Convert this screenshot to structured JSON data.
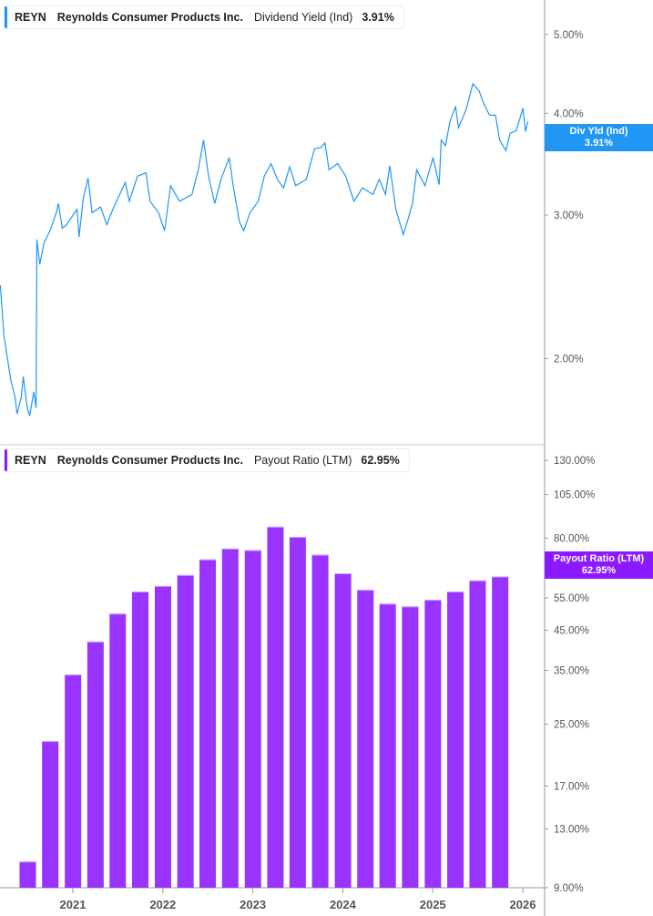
{
  "chart_data": [
    {
      "type": "line",
      "legend": {
        "ticker": "REYN",
        "company": "Reynolds Consumer Products Inc.",
        "metric": "Dividend Yield (Ind)",
        "value": "3.91%"
      },
      "current_label": {
        "line1": "Div Yld (Ind)",
        "line2": "3.91%"
      },
      "color": "#2196f3",
      "y_scale": "log",
      "ylim": [
        1.6,
        5.4
      ],
      "y_ticks": [
        {
          "value": 5,
          "label": "5.00%"
        },
        {
          "value": 4,
          "label": "4.00%"
        },
        {
          "value": 3,
          "label": "3.00%"
        },
        {
          "value": 2,
          "label": "2.00%"
        }
      ],
      "series": [
        {
          "x": [
            "2020-03-10",
            "2020-03-24",
            "2020-04-05",
            "2020-04-22",
            "2020-05-09",
            "2020-05-17",
            "2020-06-03",
            "2020-06-12",
            "2020-06-28",
            "2020-07-07",
            "2020-07-24",
            "2020-08-03",
            "2020-08-06",
            "2020-08-18",
            "2020-09-04",
            "2020-09-29",
            "2020-10-24",
            "2020-11-02",
            "2020-11-18",
            "2020-12-05",
            "2021-01-17",
            "2021-01-25",
            "2021-02-12",
            "2021-03-01",
            "2021-03-17",
            "2021-04-21",
            "2021-05-16",
            "2021-06-10",
            "2021-07-30",
            "2021-08-16",
            "2021-09-19",
            "2021-10-23",
            "2021-11-09",
            "2021-12-13",
            "2022-01-07",
            "2022-02-01",
            "2022-03-07",
            "2022-04-27",
            "2022-05-22",
            "2022-06-13",
            "2022-07-03",
            "2022-07-28",
            "2022-08-23",
            "2022-09-26",
            "2022-10-13",
            "2022-11-07",
            "2022-11-24",
            "2022-12-19",
            "2023-01-22",
            "2023-02-16",
            "2023-03-13",
            "2023-04-08",
            "2023-05-03",
            "2023-05-28",
            "2023-06-22",
            "2023-08-04",
            "2023-09-07",
            "2023-10-02",
            "2023-10-19",
            "2023-11-05",
            "2023-12-09",
            "2024-01-12",
            "2024-02-15",
            "2024-03-19",
            "2024-05-01",
            "2024-05-26",
            "2024-06-21",
            "2024-07-08",
            "2024-08-02",
            "2024-09-02",
            "2024-09-22",
            "2024-10-09",
            "2024-10-26",
            "2024-11-29",
            "2025-01-01",
            "2025-01-26",
            "2025-02-04",
            "2025-02-21",
            "2025-03-09",
            "2025-04-01",
            "2025-04-13",
            "2025-05-13",
            "2025-06-11",
            "2025-07-06",
            "2025-07-23",
            "2025-08-17",
            "2025-09-11",
            "2025-09-28",
            "2025-10-23",
            "2025-11-09",
            "2025-12-04",
            "2025-12-31",
            "2026-01-11",
            "2026-01-21"
          ],
          "y": [
            2.46,
            2.14,
            2.03,
            1.88,
            1.79,
            1.71,
            1.79,
            1.9,
            1.74,
            1.7,
            1.82,
            1.74,
            2.8,
            2.61,
            2.77,
            2.87,
            3.02,
            3.1,
            2.89,
            2.92,
            3.05,
            2.82,
            3.15,
            3.33,
            3.02,
            3.07,
            2.92,
            3.05,
            3.29,
            3.12,
            3.35,
            3.38,
            3.12,
            3.02,
            2.87,
            3.26,
            3.12,
            3.18,
            3.41,
            3.71,
            3.35,
            3.1,
            3.32,
            3.53,
            3.24,
            2.94,
            2.87,
            3.02,
            3.12,
            3.35,
            3.47,
            3.32,
            3.24,
            3.44,
            3.26,
            3.32,
            3.62,
            3.63,
            3.68,
            3.41,
            3.47,
            3.35,
            3.12,
            3.24,
            3.18,
            3.32,
            3.18,
            3.45,
            3.05,
            2.84,
            2.97,
            3.1,
            3.41,
            3.26,
            3.53,
            3.27,
            3.71,
            3.65,
            3.91,
            4.08,
            3.84,
            4.04,
            4.35,
            4.26,
            4.12,
            3.98,
            3.98,
            3.71,
            3.6,
            3.78,
            3.81,
            4.06,
            3.8,
            3.91
          ]
        }
      ]
    },
    {
      "type": "bar",
      "legend": {
        "ticker": "REYN",
        "company": "Reynolds Consumer Products Inc.",
        "metric": "Payout Ratio (LTM)",
        "value": "62.95%"
      },
      "current_label": {
        "line1": "Payout Ratio (LTM)",
        "line2": "62.95%"
      },
      "color": "#9933ff",
      "y_scale": "log",
      "ylim": [
        9,
        130
      ],
      "y_ticks": [
        {
          "value": 130,
          "label": "130.00%"
        },
        {
          "value": 105,
          "label": "105.00%"
        },
        {
          "value": 80,
          "label": "80.00%"
        },
        {
          "value": 55,
          "label": "55.00%"
        },
        {
          "value": 45,
          "label": "45.00%"
        },
        {
          "value": 35,
          "label": "35.00%"
        },
        {
          "value": 25,
          "label": "25.00%"
        },
        {
          "value": 17,
          "label": "17.00%"
        },
        {
          "value": 13,
          "label": "13.00%"
        },
        {
          "value": 9,
          "label": "9.00%"
        }
      ],
      "categories": [
        "2020-06-30",
        "2020-09-30",
        "2020-12-31",
        "2021-03-31",
        "2021-06-30",
        "2021-09-30",
        "2021-12-31",
        "2022-03-31",
        "2022-06-30",
        "2022-09-30",
        "2022-12-31",
        "2023-03-31",
        "2023-06-30",
        "2023-09-30",
        "2023-12-31",
        "2024-03-31",
        "2024-06-30",
        "2024-09-30",
        "2024-12-31",
        "2025-03-31",
        "2025-06-30",
        "2025-09-30"
      ],
      "values": [
        10.6,
        22.5,
        34.1,
        41.9,
        49.9,
        57.3,
        59.3,
        63.5,
        70.0,
        74.9,
        74.2,
        85.9,
        80.6,
        72.1,
        64.2,
        57.9,
        53.1,
        52.2,
        54.4,
        57.3,
        61.4,
        62.95
      ],
      "x_ticks": [
        "2021",
        "2022",
        "2023",
        "2024",
        "2025",
        "2026"
      ]
    }
  ]
}
